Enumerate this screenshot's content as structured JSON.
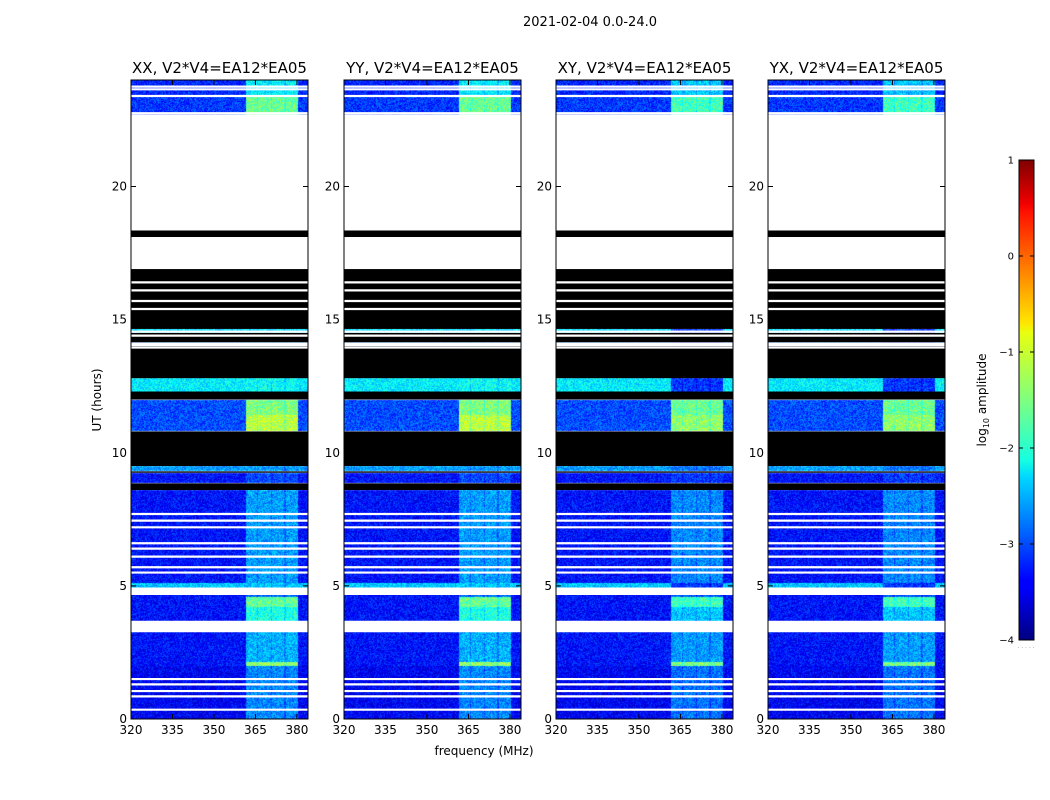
{
  "chart_data": {
    "type": "heatmap",
    "title": "2021-02-04 0.0-24.0",
    "xlabel": "frequency (MHz)",
    "ylabel": "UT (hours)",
    "colorbar_label": "log",
    "colorbar_label_sub": "10",
    "colorbar_label_rest": " amplitude",
    "colormap": "jet",
    "xlim": [
      320,
      384
    ],
    "ylim": [
      0,
      24
    ],
    "clim": [
      -4,
      1
    ],
    "xticks": [
      320,
      335,
      350,
      365,
      380
    ],
    "yticks": [
      0,
      5,
      10,
      15,
      20
    ],
    "cticks": [
      -4,
      -3,
      -2,
      -1,
      0,
      1
    ],
    "xtick_labels": [
      "320",
      "335",
      "350",
      "365",
      "380"
    ],
    "ytick_labels": [
      "0",
      "5",
      "10",
      "15",
      "20"
    ],
    "ctick_labels": [
      "−4",
      "−3",
      "−2",
      "−1",
      "0",
      "1"
    ],
    "colorbar_extra": ". . . . .",
    "panels": [
      {
        "polarization": "XX",
        "title": "XX, V2*V4=EA12*EA05",
        "cross": false
      },
      {
        "polarization": "YY",
        "title": "YY, V2*V4=EA12*EA05",
        "cross": false
      },
      {
        "polarization": "XY",
        "title": "XY, V2*V4=EA12*EA05",
        "cross": true
      },
      {
        "polarization": "YX",
        "title": "YX, V2*V4=EA12*EA05",
        "cross": true
      }
    ],
    "signal_band_MHz": [
      361.5,
      380.5
    ],
    "signal_subbands_MHz": [
      [
        361.5,
        365.5
      ],
      [
        366.0,
        370.5
      ],
      [
        371.0,
        375.5
      ],
      [
        376.0,
        380.5
      ]
    ],
    "flagged_blocks_UT": [
      [
        8.6,
        8.85
      ],
      [
        9.25,
        9.3
      ],
      [
        9.5,
        10.8
      ],
      [
        12.0,
        12.3
      ],
      [
        12.8,
        14.0
      ],
      [
        14.15,
        14.5
      ],
      [
        14.65,
        16.9
      ],
      [
        18.1,
        18.35
      ]
    ],
    "no_data_blocks_UT": [
      [
        16.9,
        18.1
      ],
      [
        18.35,
        22.7
      ]
    ],
    "blank_lines_UT": [
      0.35,
      0.85,
      1.05,
      1.3,
      1.5,
      3.3,
      3.6,
      3.65,
      4.7,
      4.9,
      5.5,
      5.7,
      6.1,
      6.4,
      6.6,
      7.2,
      7.45,
      7.7,
      13.95,
      14.05,
      14.1,
      14.4,
      14.55,
      15.4,
      15.7,
      16.1,
      16.4,
      22.75,
      23.4,
      23.65,
      23.75
    ],
    "intensity_segments": [
      {
        "ut": [
          0.0,
          2.0
        ],
        "bg": -3.4,
        "sig": -2.7,
        "cross_sig": -2.8
      },
      {
        "ut": [
          2.0,
          2.15
        ],
        "bg": -3.3,
        "sig": -1.4,
        "cross_sig": -1.5
      },
      {
        "ut": [
          2.15,
          3.3
        ],
        "bg": -3.3,
        "sig": -2.5,
        "cross_sig": -2.6
      },
      {
        "ut": [
          3.6,
          4.2
        ],
        "bg": -3.3,
        "sig": -2.0,
        "cross_sig": -2.4
      },
      {
        "ut": [
          4.2,
          4.6
        ],
        "bg": -3.3,
        "sig": -1.6,
        "cross_sig": -1.8
      },
      {
        "ut": [
          4.6,
          4.7
        ],
        "bg": -3.3,
        "sig": -2.8,
        "cross_sig": -2.9
      },
      {
        "ut": [
          4.9,
          5.1
        ],
        "bg": -2.4,
        "sig": -2.4,
        "cross_sig": -3.1
      },
      {
        "ut": [
          5.1,
          8.6
        ],
        "bg": -3.3,
        "sig": -2.6,
        "cross_sig": -2.7
      },
      {
        "ut": [
          8.85,
          9.25
        ],
        "bg": -3.3,
        "sig": -3.0,
        "cross_sig": -3.1
      },
      {
        "ut": [
          9.3,
          9.5
        ],
        "bg": -2.6,
        "sig": -2.6,
        "cross_sig": -2.8
      },
      {
        "ut": [
          10.8,
          11.4
        ],
        "bg": -3.0,
        "sig": -1.2,
        "cross_sig": -1.4
      },
      {
        "ut": [
          11.4,
          12.0
        ],
        "bg": -3.0,
        "sig": -1.5,
        "cross_sig": -1.6
      },
      {
        "ut": [
          12.3,
          12.8
        ],
        "bg": -2.2,
        "sig": -2.1,
        "cross_sig": -3.1
      },
      {
        "ut": [
          14.0,
          14.15
        ],
        "bg": -2.7,
        "sig": -2.6,
        "cross_sig": -3.1
      },
      {
        "ut": [
          14.5,
          14.65
        ],
        "bg": -2.3,
        "sig": -2.3,
        "cross_sig": -3.1
      },
      {
        "ut": [
          22.7,
          23.4
        ],
        "bg": -3.1,
        "sig": -1.6,
        "cross_sig": -1.8
      },
      {
        "ut": [
          23.4,
          24.0
        ],
        "bg": -3.2,
        "sig": -2.2,
        "cross_sig": -2.4
      }
    ]
  }
}
